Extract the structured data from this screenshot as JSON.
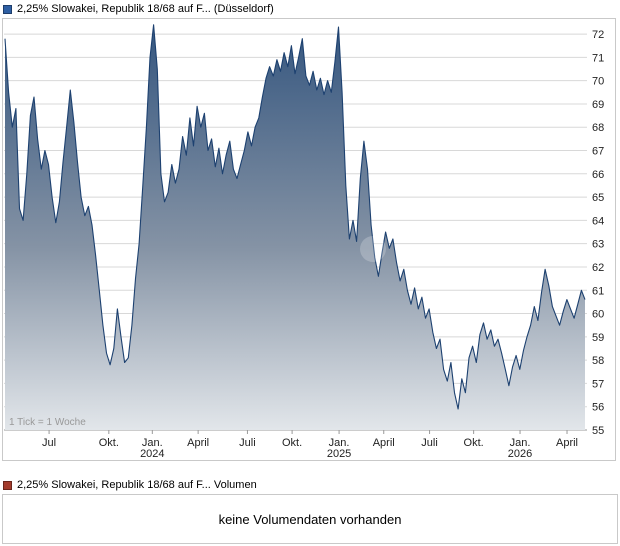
{
  "price_chart": {
    "title": "2,25% Slowakei, Republik 18/68 auf F... (Düsseldorf)",
    "swatch_color": "#2e5fa3",
    "tick_note": "1 Tick = 1 Woche"
  },
  "volume_section": {
    "title": "2,25% Slowakei, Republik 18/68 auf F... Volumen",
    "swatch_color": "#a33b2c",
    "message": "keine Volumendaten vorhanden"
  },
  "chart_data": {
    "type": "area",
    "title": "2,25% Slowakei, Republik 18/68 auf F... (Düsseldorf)",
    "x_unit": "1 Tick = 1 Woche (weekly ticks)",
    "x_range": [
      "2023-04",
      "2026-04"
    ],
    "ylim": [
      55,
      72.5
    ],
    "y_ticks": [
      55,
      56,
      57,
      58,
      59,
      60,
      61,
      62,
      63,
      64,
      65,
      66,
      67,
      68,
      69,
      70,
      71,
      72
    ],
    "grid": true,
    "legend_position": "top-left",
    "line_color": "#1d4170",
    "fill_top": "#35567f",
    "fill_mid": "#8593a5",
    "fill_bottom": "#e2e6ea",
    "x_ticks": [
      {
        "label": "Jul",
        "pos": 0.076
      },
      {
        "label": "Okt.",
        "pos": 0.179
      },
      {
        "label": "Jan.",
        "year": "2024",
        "pos": 0.254
      },
      {
        "label": "April",
        "pos": 0.333
      },
      {
        "label": "Juli",
        "pos": 0.418
      },
      {
        "label": "Okt.",
        "pos": 0.495
      },
      {
        "label": "Jan.",
        "year": "2025",
        "pos": 0.576
      },
      {
        "label": "April",
        "pos": 0.653
      },
      {
        "label": "Juli",
        "pos": 0.732
      },
      {
        "label": "Okt.",
        "pos": 0.808
      },
      {
        "label": "Jan.",
        "year": "2026",
        "pos": 0.888
      },
      {
        "label": "April",
        "pos": 0.969
      }
    ],
    "values": [
      71.8,
      69.5,
      68.0,
      68.8,
      64.5,
      64.0,
      66.0,
      68.5,
      69.3,
      67.5,
      66.2,
      67.0,
      66.4,
      65.0,
      63.9,
      64.8,
      66.5,
      68.0,
      69.6,
      68.2,
      66.5,
      65.0,
      64.2,
      64.6,
      63.8,
      62.5,
      61.0,
      59.5,
      58.3,
      57.8,
      58.5,
      60.2,
      59.0,
      57.9,
      58.1,
      59.5,
      61.5,
      63.0,
      65.5,
      68.0,
      71.0,
      72.4,
      70.5,
      66.0,
      64.8,
      65.2,
      66.4,
      65.6,
      66.2,
      67.6,
      66.8,
      68.4,
      67.2,
      68.9,
      68.0,
      68.6,
      67.0,
      67.5,
      66.3,
      67.1,
      66.0,
      66.8,
      67.4,
      66.2,
      65.8,
      66.4,
      67.0,
      67.8,
      67.2,
      68.0,
      68.4,
      69.3,
      70.1,
      70.6,
      70.2,
      70.9,
      70.4,
      71.2,
      70.6,
      71.5,
      70.3,
      71.0,
      71.8,
      70.2,
      69.8,
      70.4,
      69.6,
      70.1,
      69.4,
      70.0,
      69.5,
      70.8,
      72.3,
      69.5,
      65.5,
      63.2,
      64.0,
      63.1,
      65.8,
      67.4,
      66.2,
      63.8,
      62.4,
      61.6,
      62.6,
      63.5,
      62.8,
      63.2,
      62.2,
      61.4,
      61.9,
      61.0,
      60.4,
      61.1,
      60.2,
      60.7,
      59.8,
      60.2,
      59.2,
      58.5,
      58.9,
      57.6,
      57.1,
      57.9,
      56.6,
      55.9,
      57.2,
      56.6,
      58.1,
      58.6,
      57.9,
      59.1,
      59.6,
      58.9,
      59.3,
      58.6,
      58.9,
      58.3,
      57.6,
      56.9,
      57.7,
      58.2,
      57.6,
      58.4,
      59.0,
      59.5,
      60.3,
      59.7,
      60.9,
      61.9,
      61.2,
      60.3,
      59.9,
      59.5,
      60.1,
      60.6,
      60.2,
      59.8,
      60.4,
      61.0,
      60.6
    ]
  }
}
